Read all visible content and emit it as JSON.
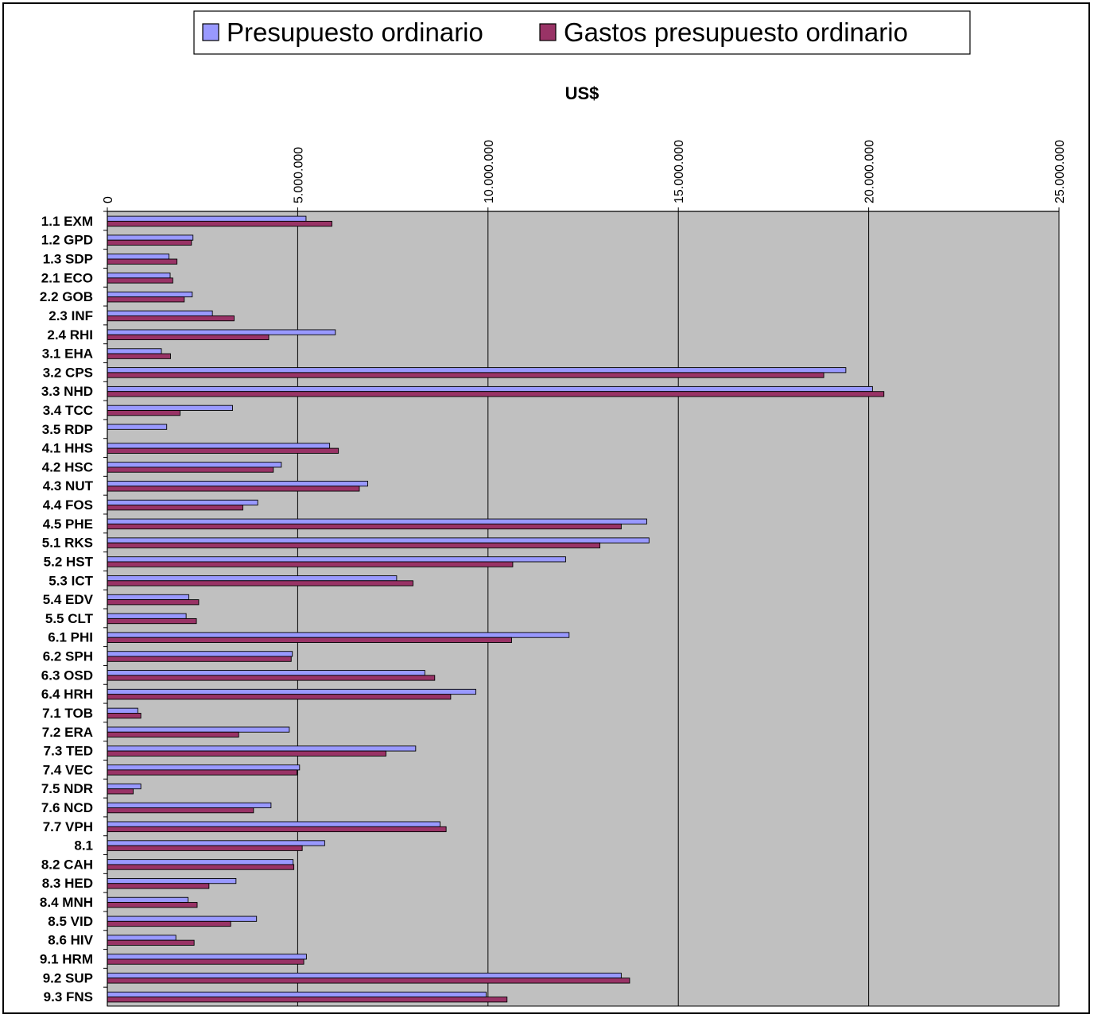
{
  "chart_data": {
    "type": "bar",
    "orientation": "horizontal",
    "categories": [
      "1.1 EXM",
      "1.2 GPD",
      "1.3 SDP",
      "2.1 ECO",
      "2.2 GOB",
      "2.3 INF",
      "2.4 RHI",
      "3.1 EHA",
      "3.2 CPS",
      "3.3 NHD",
      "3.4 TCC",
      "3.5 RDP",
      "4.1 HHS",
      "4.2 HSC",
      "4.3 NUT",
      "4.4 FOS",
      "4.5 PHE",
      "5.1 RKS",
      "5.2 HST",
      "5.3 ICT",
      "5.4 EDV",
      "5.5 CLT",
      "6.1 PHI",
      "6.2 SPH",
      "6.3 OSD",
      "6.4 HRH",
      "7.1 TOB",
      "7.2 ERA",
      "7.3 TED",
      "7.4 VEC",
      "7.5 NDR",
      "7.6 NCD",
      "7.7 VPH",
      "8.1",
      "8.2 CAH",
      "8.3 HED",
      "8.4 MNH",
      "8.5 VID",
      "8.6 HIV",
      "9.1 HRM",
      "9.2 SUP",
      "9.3 FNS"
    ],
    "series": [
      {
        "name": "Presupuesto ordinario",
        "color": "#9999FF",
        "values": [
          5220000,
          2250000,
          1620000,
          1650000,
          2230000,
          2760000,
          5990000,
          1420000,
          19400000,
          20100000,
          3290000,
          1560000,
          5840000,
          4570000,
          6840000,
          3950000,
          14170000,
          14230000,
          12040000,
          7600000,
          2140000,
          2070000,
          12130000,
          4860000,
          8340000,
          9680000,
          800000,
          4780000,
          8100000,
          5050000,
          880000,
          4300000,
          8740000,
          5710000,
          4880000,
          3380000,
          2120000,
          3920000,
          1800000,
          5230000,
          13500000,
          9950000
        ]
      },
      {
        "name": "Gastos presupuesto ordinario",
        "color": "#993366",
        "values": [
          5900000,
          2210000,
          1830000,
          1720000,
          2020000,
          3330000,
          4240000,
          1660000,
          18820000,
          20400000,
          1910000,
          0,
          6070000,
          4360000,
          6620000,
          3560000,
          13500000,
          12940000,
          10650000,
          8030000,
          2400000,
          2340000,
          10620000,
          4830000,
          8600000,
          9020000,
          880000,
          3450000,
          7320000,
          4980000,
          680000,
          3840000,
          8900000,
          5120000,
          4900000,
          2670000,
          2360000,
          3240000,
          2280000,
          5160000,
          13720000,
          10500000
        ]
      }
    ],
    "xlabel": "US$",
    "xlim": [
      0,
      25000000
    ],
    "tick_labels": [
      "0",
      "5.000.000",
      "10.000.000",
      "15.000.000",
      "20.000.000",
      "25.000.000"
    ],
    "tick_values": [
      0,
      5000000,
      10000000,
      15000000,
      20000000,
      25000000
    ],
    "grid": true,
    "legend_position": "top",
    "x_axis_position": "top",
    "plot_background": "#C0C0C0"
  }
}
